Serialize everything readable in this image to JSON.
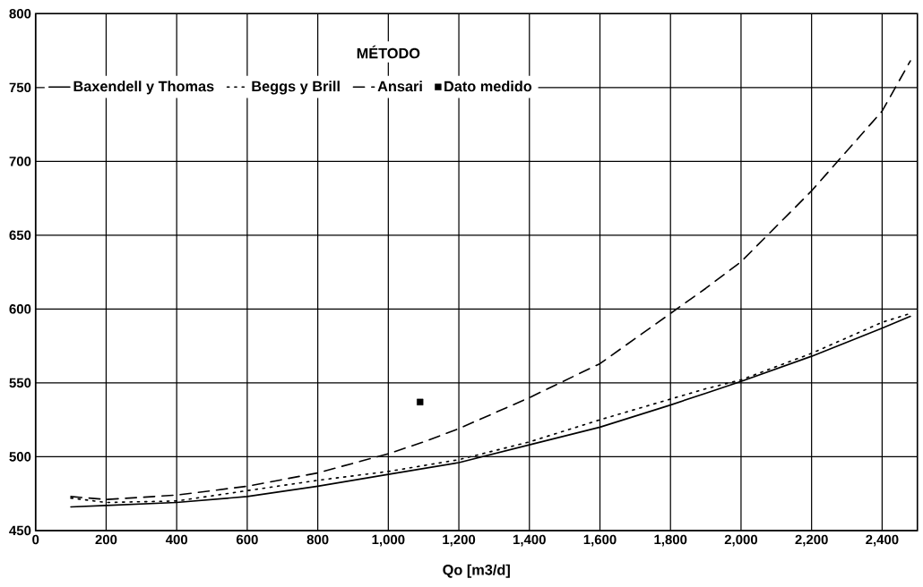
{
  "chart_data": {
    "type": "line",
    "xlabel": "Qo [m3/d]",
    "legend_title": "MÉTODO",
    "legend": "top left",
    "grid": true,
    "x": [
      100,
      200,
      400,
      600,
      800,
      1000,
      1100,
      1200,
      1400,
      1600,
      1800,
      1900,
      2000,
      2200,
      2400,
      2480
    ],
    "series": [
      {
        "name": "Baxendell y Thomas",
        "color": "#000000",
        "line_style": "solid",
        "values": [
          466,
          467,
          469,
          473,
          480,
          488,
          492,
          496,
          508,
          520,
          535,
          543,
          551,
          568,
          587,
          595
        ]
      },
      {
        "name": "Beggs y Brill",
        "color": "#000000",
        "line_style": "dotted",
        "values": [
          472,
          469,
          470,
          477,
          484,
          490,
          494,
          498,
          510,
          525,
          539,
          546,
          552,
          570,
          591,
          597
        ]
      },
      {
        "name": "Ansari",
        "color": "#000000",
        "line_style": "dashed",
        "values": [
          473,
          471,
          474,
          480,
          489,
          502,
          510,
          519,
          540,
          563,
          597,
          614,
          632,
          680,
          734,
          768
        ]
      },
      {
        "name": "Dato medido",
        "type": "scatter",
        "marker": "square",
        "color": "#000000",
        "x": [
          1090
        ],
        "values": [
          537
        ]
      }
    ],
    "xlim": [
      0,
      2500
    ],
    "ylim": [
      450,
      800
    ],
    "xticks": [
      0,
      200,
      400,
      600,
      800,
      {
        "value": 1000,
        "label": "1,000"
      },
      {
        "value": 1200,
        "label": "1,200"
      },
      {
        "value": 1400,
        "label": "1,400"
      },
      {
        "value": 1600,
        "label": "1,600"
      },
      {
        "value": 1800,
        "label": "1,800"
      },
      {
        "value": 2000,
        "label": "2,000"
      },
      {
        "value": 2200,
        "label": "2,200"
      },
      {
        "value": 2400,
        "label": "2,400"
      }
    ],
    "yticks": [
      450,
      500,
      550,
      600,
      650,
      700,
      750,
      800
    ]
  }
}
